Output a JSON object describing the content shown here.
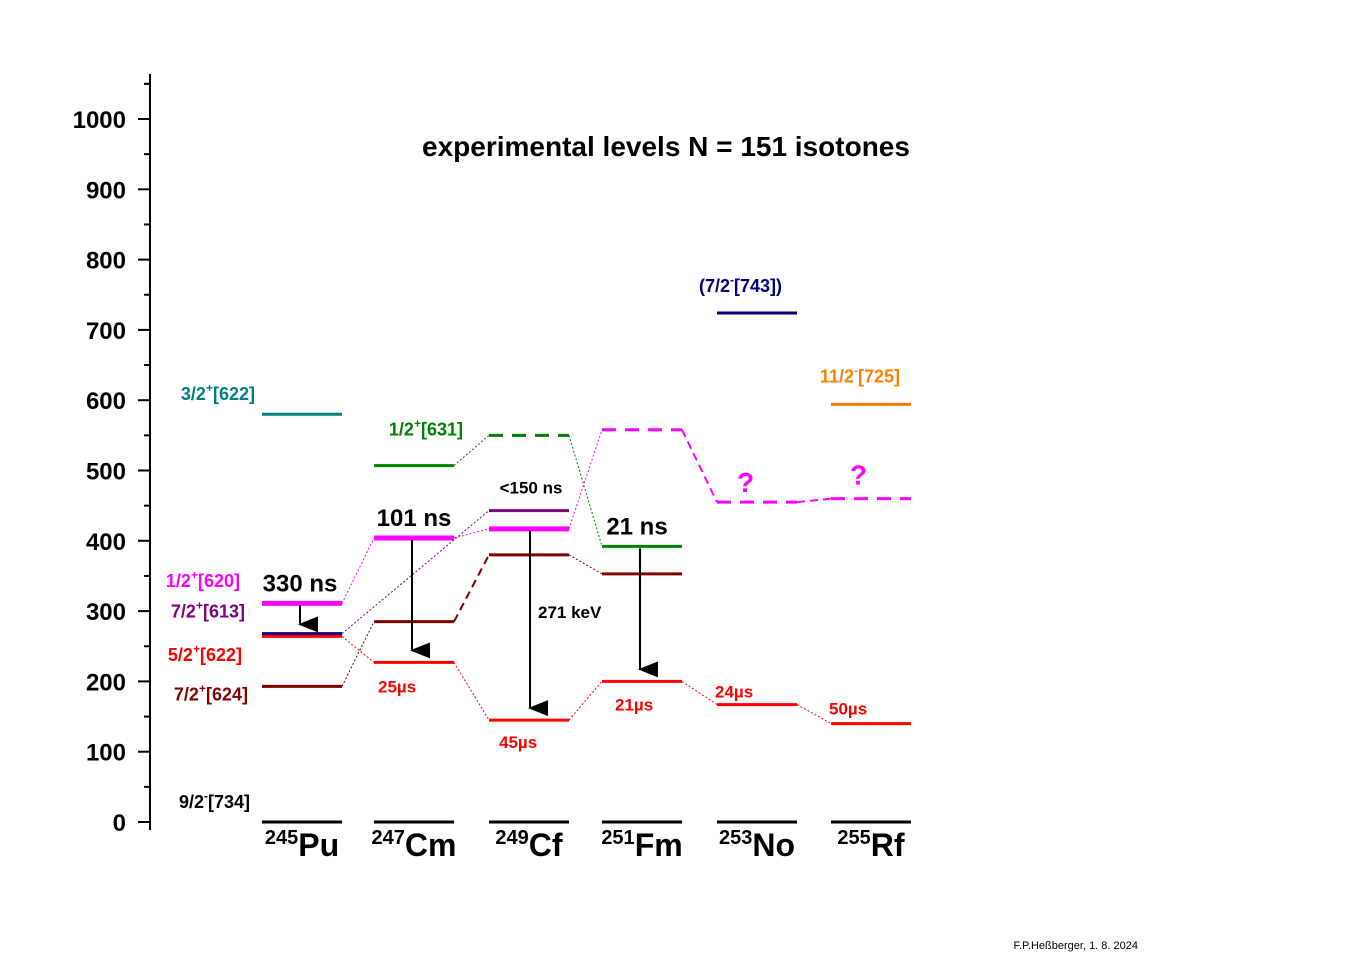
{
  "title": "experimental levels N = 151 isotones",
  "credit": "F.P.Heßberger, 1. 8. 2024",
  "colors": {
    "magenta": "#ff00ff",
    "purple": "#800080",
    "red": "#ff0000",
    "darkred": "#800000",
    "green": "#008000",
    "teal": "#008080",
    "navy": "#000080",
    "orange": "#ff8000",
    "black": "#000000"
  },
  "chart_data": {
    "type": "level-scheme",
    "ylim": [
      0,
      1050
    ],
    "yticks": [
      0,
      100,
      200,
      300,
      400,
      500,
      600,
      700,
      800,
      900,
      1000
    ],
    "nuclei": [
      {
        "mass": "245",
        "symbol": "Pu"
      },
      {
        "mass": "247",
        "symbol": "Cm"
      },
      {
        "mass": "249",
        "symbol": "Cf"
      },
      {
        "mass": "251",
        "symbol": "Fm"
      },
      {
        "mass": "253",
        "symbol": "No"
      },
      {
        "mass": "255",
        "symbol": "Rf"
      }
    ],
    "state_labels": [
      {
        "text": "3/2",
        "sup": "+",
        "orbital": "[622]",
        "color": "teal"
      },
      {
        "text": "1/2",
        "sup": "+",
        "orbital": "[620]",
        "color": "magenta"
      },
      {
        "text": "7/2",
        "sup": "+",
        "orbital": "[613]",
        "color": "purple"
      },
      {
        "text": "5/2",
        "sup": "+",
        "orbital": "[622]",
        "color": "red"
      },
      {
        "text": "7/2",
        "sup": "+",
        "orbital": "[624]",
        "color": "darkred"
      },
      {
        "text": "9/2",
        "sup": "-",
        "orbital": "[734]",
        "color": "black"
      },
      {
        "text": "1/2",
        "sup": "+",
        "orbital": "[631]",
        "color": "green"
      },
      {
        "prefix": "(",
        "text": "7/2",
        "sup": "-",
        "orbital": "[743])",
        "color": "navy"
      },
      {
        "text": "11/2",
        "sup": "-",
        "orbital": "[725]",
        "color": "orange"
      }
    ],
    "levels": [
      {
        "nucleus": 0,
        "energy": 580,
        "color": "teal"
      },
      {
        "nucleus": 0,
        "energy": 311,
        "color": "magenta",
        "thick": true
      },
      {
        "nucleus": 0,
        "energy": 268,
        "color": "navy"
      },
      {
        "nucleus": 0,
        "energy": 264,
        "color": "red"
      },
      {
        "nucleus": 0,
        "energy": 193,
        "color": "darkred"
      },
      {
        "nucleus": 0,
        "energy": 0,
        "color": "black"
      },
      {
        "nucleus": 1,
        "energy": 507,
        "color": "green"
      },
      {
        "nucleus": 1,
        "energy": 404,
        "color": "magenta",
        "thick": true
      },
      {
        "nucleus": 1,
        "energy": 285,
        "color": "darkred"
      },
      {
        "nucleus": 1,
        "energy": 227,
        "color": "red"
      },
      {
        "nucleus": 1,
        "energy": 0,
        "color": "black"
      },
      {
        "nucleus": 2,
        "energy": 550,
        "color": "green",
        "dashed": true
      },
      {
        "nucleus": 2,
        "energy": 443,
        "color": "purple"
      },
      {
        "nucleus": 2,
        "energy": 417,
        "color": "magenta",
        "thick": true
      },
      {
        "nucleus": 2,
        "energy": 380,
        "color": "darkred"
      },
      {
        "nucleus": 2,
        "energy": 145,
        "color": "red"
      },
      {
        "nucleus": 2,
        "energy": 0,
        "color": "black"
      },
      {
        "nucleus": 3,
        "energy": 558,
        "color": "magenta",
        "dashed": true
      },
      {
        "nucleus": 3,
        "energy": 392,
        "color": "green"
      },
      {
        "nucleus": 3,
        "energy": 353,
        "color": "darkred"
      },
      {
        "nucleus": 3,
        "energy": 200,
        "color": "red"
      },
      {
        "nucleus": 3,
        "energy": 0,
        "color": "black"
      },
      {
        "nucleus": 4,
        "energy": 724,
        "color": "navy"
      },
      {
        "nucleus": 4,
        "energy": 455,
        "color": "magenta",
        "dashed": true
      },
      {
        "nucleus": 4,
        "energy": 167,
        "color": "red"
      },
      {
        "nucleus": 4,
        "energy": 0,
        "color": "black"
      },
      {
        "nucleus": 5,
        "energy": 594,
        "color": "orange"
      },
      {
        "nucleus": 5,
        "energy": 460,
        "color": "magenta",
        "dashed": true
      },
      {
        "nucleus": 5,
        "energy": 140,
        "color": "red"
      },
      {
        "nucleus": 5,
        "energy": 0,
        "color": "black"
      }
    ],
    "connections": [
      {
        "from": [
          0,
          193
        ],
        "to": [
          1,
          285
        ],
        "color": "darkred"
      },
      {
        "from": [
          1,
          285
        ],
        "to": [
          2,
          380
        ],
        "color": "darkred",
        "dashed": true
      },
      {
        "from": [
          2,
          380
        ],
        "to": [
          3,
          353
        ],
        "color": "darkred"
      },
      {
        "from": [
          0,
          264
        ],
        "to": [
          1,
          227
        ],
        "color": "red"
      },
      {
        "from": [
          1,
          227
        ],
        "to": [
          2,
          145
        ],
        "color": "red"
      },
      {
        "from": [
          2,
          145
        ],
        "to": [
          3,
          200
        ],
        "color": "red"
      },
      {
        "from": [
          3,
          200
        ],
        "to": [
          4,
          167
        ],
        "color": "red"
      },
      {
        "from": [
          4,
          167
        ],
        "to": [
          5,
          140
        ],
        "color": "red"
      },
      {
        "from": [
          0,
          268
        ],
        "to": [
          2,
          443
        ],
        "color": "purple"
      },
      {
        "from": [
          0,
          311
        ],
        "to": [
          1,
          404
        ],
        "color": "magenta"
      },
      {
        "from": [
          1,
          404
        ],
        "to": [
          2,
          417
        ],
        "color": "magenta"
      },
      {
        "from": [
          2,
          417
        ],
        "to": [
          3,
          558
        ],
        "color": "magenta"
      },
      {
        "from": [
          3,
          558
        ],
        "to": [
          4,
          455
        ],
        "color": "magenta",
        "dashed": true
      },
      {
        "from": [
          4,
          455
        ],
        "to": [
          5,
          460
        ],
        "color": "magenta",
        "dashed": true
      },
      {
        "from": [
          1,
          507
        ],
        "to": [
          2,
          550
        ],
        "color": "green"
      },
      {
        "from": [
          2,
          550
        ],
        "to": [
          3,
          392
        ],
        "color": "green"
      }
    ],
    "transitions": [
      {
        "nucleus": 0,
        "from": 311,
        "to": 264
      },
      {
        "nucleus": 1,
        "from": 404,
        "to": 227
      },
      {
        "nucleus": 2,
        "from": 417,
        "to": 145
      },
      {
        "nucleus": 3,
        "from": 392,
        "to": 200
      }
    ],
    "annotations": [
      {
        "text": "330 ns",
        "nucleus": 0,
        "energy": 311,
        "color": "black",
        "size": "large"
      },
      {
        "text": "101 ns",
        "nucleus": 1,
        "energy": 404,
        "color": "black",
        "size": "large"
      },
      {
        "text": "<150 ns",
        "nucleus": 2,
        "energy": 443,
        "color": "black",
        "size": "small"
      },
      {
        "text": "21 ns",
        "nucleus": 3,
        "energy": 392,
        "color": "black",
        "size": "large"
      },
      {
        "text": "271 keV",
        "nucleus": 2,
        "energy": 290,
        "color": "black",
        "size": "small"
      },
      {
        "text": "25µs",
        "nucleus": 1,
        "energy": 227,
        "color": "red",
        "size": "small"
      },
      {
        "text": "45µs",
        "nucleus": 2,
        "energy": 145,
        "color": "red",
        "size": "small"
      },
      {
        "text": "21µs",
        "nucleus": 3,
        "energy": 200,
        "color": "red",
        "size": "small"
      },
      {
        "text": "24µs",
        "nucleus": 4,
        "energy": 167,
        "color": "red",
        "size": "small"
      },
      {
        "text": "50µs",
        "nucleus": 5,
        "energy": 140,
        "color": "red",
        "size": "small"
      },
      {
        "text": "?",
        "nucleus": 4,
        "energy": 455,
        "color": "magenta",
        "size": "q"
      },
      {
        "text": "?",
        "nucleus": 5,
        "energy": 460,
        "color": "magenta",
        "size": "q"
      }
    ]
  }
}
